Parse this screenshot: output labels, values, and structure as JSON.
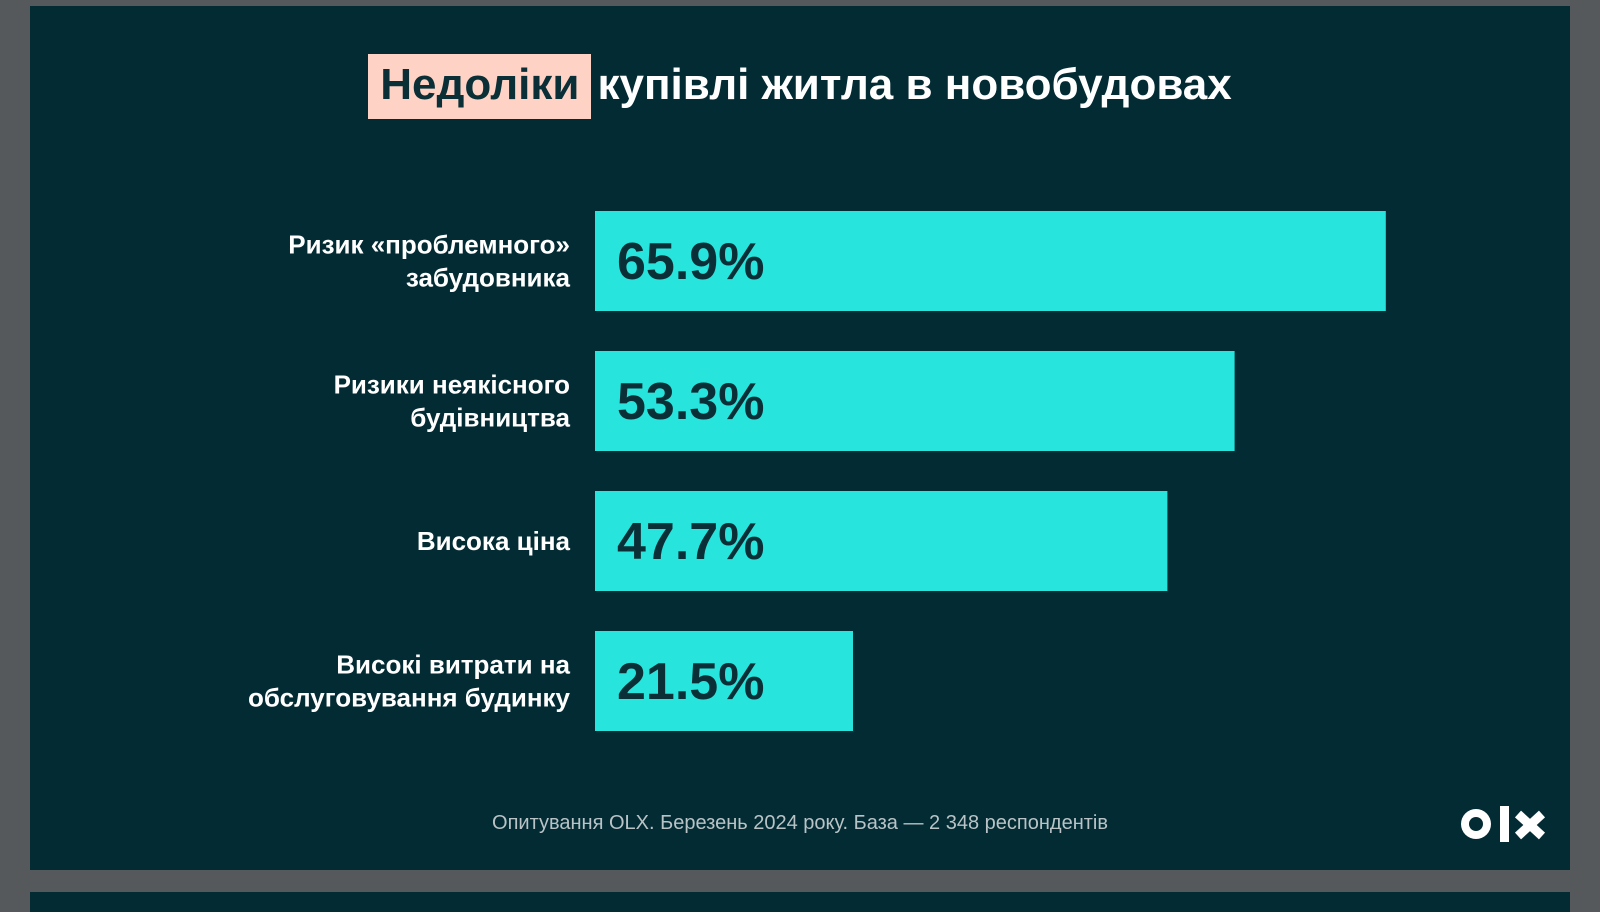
{
  "title": {
    "highlight": "Недоліки",
    "rest": "купівлі житла в новобудовах"
  },
  "chart_data": {
    "type": "bar",
    "orientation": "horizontal",
    "categories": [
      [
        "Ризик «проблемного»",
        "забудовника"
      ],
      [
        "Ризики неякісного",
        "будівництва"
      ],
      [
        "Висока ціна"
      ],
      [
        "Високі витрати на",
        "обслуговування будинку"
      ]
    ],
    "values": [
      65.9,
      53.3,
      47.7,
      21.5
    ],
    "value_labels": [
      "65.9%",
      "53.3%",
      "47.7%",
      "21.5%"
    ],
    "xlim": [
      0,
      100
    ],
    "grid": false,
    "bar_color": "#27e4dc",
    "label_color": "#0a2f36"
  },
  "footnote": "Опитування OLX. Березень 2024 року. База — 2 348 респондентів",
  "logo": {
    "text": "OLX",
    "icon": "olx-logo"
  },
  "colors": {
    "background": "#022b33",
    "text": "#ffffff",
    "highlight": "#ffd2c6",
    "accent": "#27e4dc"
  }
}
